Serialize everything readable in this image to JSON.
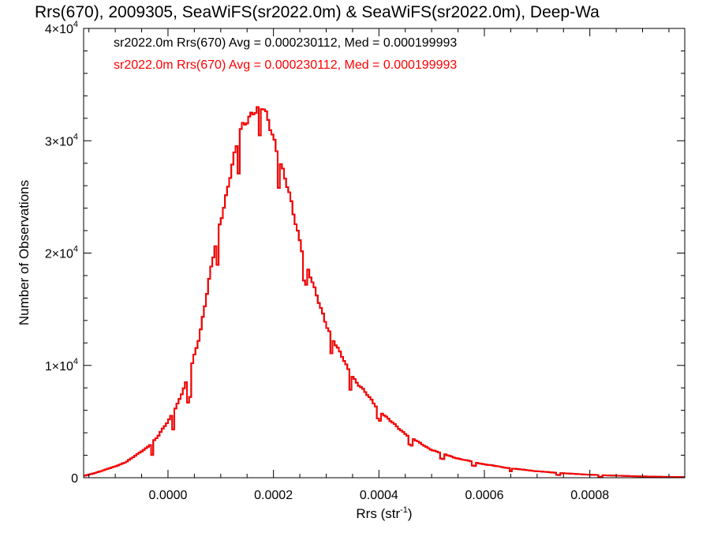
{
  "chart_data": {
    "type": "histogram",
    "title": "Rrs(670), 2009305, SeaWiFS(sr2022.0m) & SeaWiFS(sr2022.0m), Deep-Wa",
    "xlabel": "Rrs (str",
    "xlabel_sup": "-1",
    "xlabel_suffix": ")",
    "ylabel": "Number of Observations",
    "xlim": [
      -0.00016,
      0.00098
    ],
    "ylim": [
      0,
      40000
    ],
    "x_ticks": [
      {
        "value": 0.0,
        "label": "0.0000"
      },
      {
        "value": 0.0002,
        "label": "0.0002"
      },
      {
        "value": 0.0004,
        "label": "0.0004"
      },
      {
        "value": 0.0006,
        "label": "0.0006"
      },
      {
        "value": 0.0008,
        "label": "0.0008"
      }
    ],
    "y_ticks": [
      {
        "value": 0,
        "base": "0",
        "exp": ""
      },
      {
        "value": 10000,
        "base": "1×10",
        "exp": "4"
      },
      {
        "value": 20000,
        "base": "2×10",
        "exp": "4"
      },
      {
        "value": 30000,
        "base": "3×10",
        "exp": "4"
      },
      {
        "value": 40000,
        "base": "4×10",
        "exp": "4"
      }
    ],
    "legend": [
      {
        "text": "sr2022.0m Rrs(670) Avg = 0.000230112, Med = 0.000199993",
        "color": "#000000"
      },
      {
        "text": "sr2022.0m Rrs(670) Avg = 0.000230112, Med = 0.000199993",
        "color": "#ff0000"
      }
    ],
    "series": [
      {
        "color": "#000000",
        "points": [
          [
            -0.00016,
            150
          ],
          [
            -0.00014,
            400
          ],
          [
            -0.00012,
            700
          ],
          [
            -0.0001,
            1000
          ],
          [
            -8e-05,
            1400
          ],
          [
            -6e-05,
            2000
          ],
          [
            -4e-05,
            2700
          ],
          [
            -2e-05,
            3600
          ],
          [
            0.0,
            5000
          ],
          [
            2e-05,
            6800
          ],
          [
            4e-05,
            9000
          ],
          [
            6e-05,
            12800
          ],
          [
            8e-05,
            18000
          ],
          [
            0.0001,
            23000
          ],
          [
            0.00012,
            27500
          ],
          [
            0.00014,
            31000
          ],
          [
            0.00016,
            32900
          ],
          [
            0.00018,
            32700
          ],
          [
            0.0002,
            30500
          ],
          [
            0.00022,
            27000
          ],
          [
            0.00024,
            23000
          ],
          [
            0.00026,
            19500
          ],
          [
            0.00028,
            16300
          ],
          [
            0.0003,
            13800
          ],
          [
            0.00032,
            11600
          ],
          [
            0.00034,
            9800
          ],
          [
            0.00036,
            8400
          ],
          [
            0.00038,
            7200
          ],
          [
            0.0004,
            6100
          ],
          [
            0.00042,
            5100
          ],
          [
            0.00044,
            4300
          ],
          [
            0.00046,
            3600
          ],
          [
            0.00048,
            3000
          ],
          [
            0.0005,
            2500
          ],
          [
            0.00052,
            2150
          ],
          [
            0.00054,
            1850
          ],
          [
            0.00056,
            1600
          ],
          [
            0.00058,
            1400
          ],
          [
            0.0006,
            1200
          ],
          [
            0.00062,
            1050
          ],
          [
            0.00064,
            900
          ],
          [
            0.00066,
            780
          ],
          [
            0.00068,
            680
          ],
          [
            0.0007,
            580
          ],
          [
            0.00072,
            500
          ],
          [
            0.00074,
            430
          ],
          [
            0.00076,
            370
          ],
          [
            0.00078,
            320
          ],
          [
            0.0008,
            270
          ],
          [
            0.00082,
            230
          ],
          [
            0.00084,
            200
          ],
          [
            0.00086,
            170
          ],
          [
            0.00088,
            140
          ],
          [
            0.0009,
            115
          ],
          [
            0.00092,
            95
          ],
          [
            0.00094,
            80
          ],
          [
            0.00096,
            70
          ],
          [
            0.00098,
            60
          ]
        ]
      },
      {
        "color": "#ff0000",
        "points": [
          [
            -0.00016,
            150
          ],
          [
            -0.00014,
            400
          ],
          [
            -0.00012,
            700
          ],
          [
            -0.0001,
            1000
          ],
          [
            -8e-05,
            1400
          ],
          [
            -6e-05,
            2000
          ],
          [
            -4e-05,
            2700
          ],
          [
            -2e-05,
            3600
          ],
          [
            0.0,
            5000
          ],
          [
            2e-05,
            6800
          ],
          [
            4e-05,
            9000
          ],
          [
            6e-05,
            12800
          ],
          [
            8e-05,
            18000
          ],
          [
            0.0001,
            23000
          ],
          [
            0.00012,
            27500
          ],
          [
            0.00014,
            31000
          ],
          [
            0.00016,
            32900
          ],
          [
            0.00018,
            32700
          ],
          [
            0.0002,
            30500
          ],
          [
            0.00022,
            27000
          ],
          [
            0.00024,
            23000
          ],
          [
            0.00026,
            19500
          ],
          [
            0.00028,
            16300
          ],
          [
            0.0003,
            13800
          ],
          [
            0.00032,
            11600
          ],
          [
            0.00034,
            9800
          ],
          [
            0.00036,
            8400
          ],
          [
            0.00038,
            7200
          ],
          [
            0.0004,
            6100
          ],
          [
            0.00042,
            5100
          ],
          [
            0.00044,
            4300
          ],
          [
            0.00046,
            3600
          ],
          [
            0.00048,
            3000
          ],
          [
            0.0005,
            2500
          ],
          [
            0.00052,
            2150
          ],
          [
            0.00054,
            1850
          ],
          [
            0.00056,
            1600
          ],
          [
            0.00058,
            1400
          ],
          [
            0.0006,
            1200
          ],
          [
            0.00062,
            1050
          ],
          [
            0.00064,
            900
          ],
          [
            0.00066,
            780
          ],
          [
            0.00068,
            680
          ],
          [
            0.0007,
            580
          ],
          [
            0.00072,
            500
          ],
          [
            0.00074,
            430
          ],
          [
            0.00076,
            370
          ],
          [
            0.00078,
            320
          ],
          [
            0.0008,
            270
          ],
          [
            0.00082,
            230
          ],
          [
            0.00084,
            200
          ],
          [
            0.00086,
            170
          ],
          [
            0.00088,
            140
          ],
          [
            0.0009,
            115
          ],
          [
            0.00092,
            95
          ],
          [
            0.00094,
            80
          ],
          [
            0.00096,
            70
          ],
          [
            0.00098,
            60
          ]
        ]
      }
    ],
    "dips": [
      {
        "x": -3e-05,
        "depth": 1100
      },
      {
        "x": 1e-05,
        "depth": 1500
      },
      {
        "x": 4e-05,
        "depth": 2200
      },
      {
        "x": 9.5e-05,
        "depth": 2800
      },
      {
        "x": 0.000135,
        "depth": 3000
      },
      {
        "x": 0.000175,
        "depth": 2600
      },
      {
        "x": 0.00021,
        "depth": 2400
      },
      {
        "x": 0.00026,
        "depth": 2000
      },
      {
        "x": 0.00031,
        "depth": 1600
      },
      {
        "x": 0.000345,
        "depth": 1400
      },
      {
        "x": 0.0004,
        "depth": 900
      },
      {
        "x": 0.00046,
        "depth": 700
      },
      {
        "x": 0.00052,
        "depth": 500
      },
      {
        "x": 0.00058,
        "depth": 350
      },
      {
        "x": 0.00065,
        "depth": 250
      },
      {
        "x": 0.00074,
        "depth": 180
      },
      {
        "x": 0.00082,
        "depth": 150
      }
    ]
  }
}
